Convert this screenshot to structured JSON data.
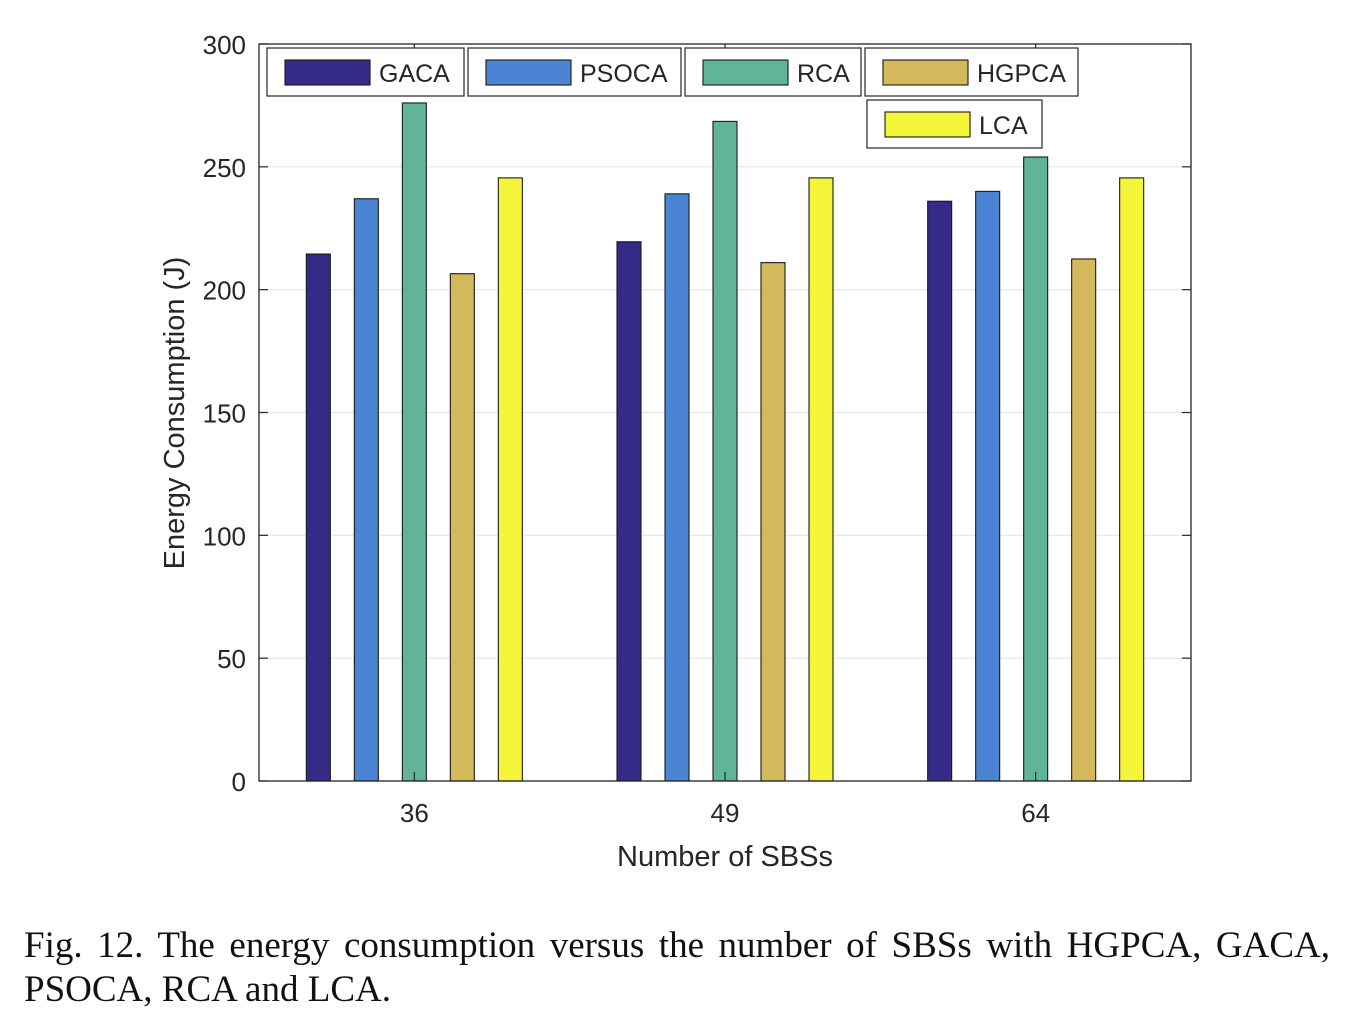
{
  "chart_data": {
    "type": "bar",
    "categories": [
      "36",
      "49",
      "64"
    ],
    "series": [
      {
        "name": "GACA",
        "color": "#352a87",
        "values": [
          214.5,
          219.5,
          236
        ]
      },
      {
        "name": "PSOCA",
        "color": "#4a84d2",
        "values": [
          237,
          239,
          240
        ]
      },
      {
        "name": "RCA",
        "color": "#5fb49a",
        "values": [
          276,
          268.5,
          254
        ]
      },
      {
        "name": "HGPCA",
        "color": "#d4b85c",
        "values": [
          206.5,
          211,
          212.5
        ]
      },
      {
        "name": "LCA",
        "color": "#f5f53a",
        "values": [
          245.5,
          245.5,
          245.5
        ]
      }
    ],
    "xlabel": "Number of SBSs",
    "ylabel": "Energy Consumption (J)",
    "ylim": [
      0,
      300
    ],
    "yticks": [
      "0",
      "50",
      "100",
      "150",
      "200",
      "250",
      "300"
    ],
    "grid": true,
    "legend_position": "top-left"
  },
  "caption": "Fig. 12.   The energy consumption versus the number of SBSs with HGPCA, GACA, PSOCA, RCA and LCA."
}
